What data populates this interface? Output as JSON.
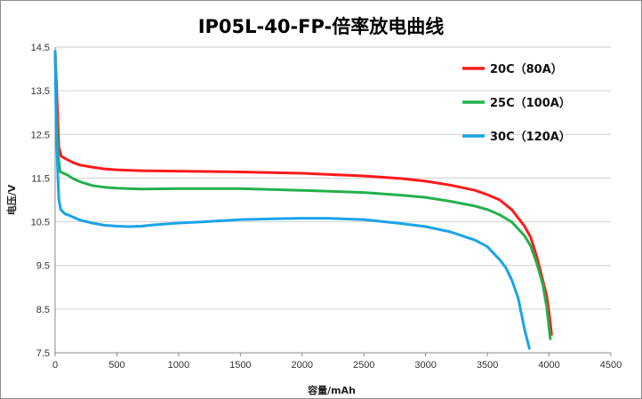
{
  "chart_data": {
    "type": "line",
    "title": "IP05L-40-FP-倍率放电曲线",
    "xlabel": "容量/mAh",
    "ylabel": "电压/V",
    "xlim": [
      0,
      4500
    ],
    "ylim": [
      7.5,
      14.5
    ],
    "xticks": [
      0,
      500,
      1000,
      1500,
      2000,
      2500,
      3000,
      3500,
      4000,
      4500
    ],
    "yticks": [
      7.5,
      8.5,
      9.5,
      10.5,
      11.5,
      12.5,
      13.5,
      14.5
    ],
    "grid": {
      "horizontal": true,
      "vertical": false
    },
    "legend_position": "top-right",
    "series": [
      {
        "name": "20C（80A）",
        "color": "#ff1a1a",
        "points": [
          [
            0,
            14.4
          ],
          [
            15,
            13.3
          ],
          [
            30,
            12.2
          ],
          [
            50,
            12.0
          ],
          [
            100,
            11.92
          ],
          [
            150,
            11.85
          ],
          [
            200,
            11.8
          ],
          [
            300,
            11.75
          ],
          [
            400,
            11.71
          ],
          [
            500,
            11.69
          ],
          [
            700,
            11.67
          ],
          [
            1000,
            11.66
          ],
          [
            1500,
            11.64
          ],
          [
            2000,
            11.61
          ],
          [
            2500,
            11.55
          ],
          [
            2800,
            11.49
          ],
          [
            3000,
            11.43
          ],
          [
            3200,
            11.34
          ],
          [
            3400,
            11.22
          ],
          [
            3500,
            11.12
          ],
          [
            3600,
            11.0
          ],
          [
            3700,
            10.77
          ],
          [
            3800,
            10.4
          ],
          [
            3850,
            10.15
          ],
          [
            3900,
            9.7
          ],
          [
            3950,
            9.15
          ],
          [
            3980,
            8.8
          ],
          [
            4000,
            8.4
          ],
          [
            4020,
            7.92
          ]
        ]
      },
      {
        "name": "25C（100A）",
        "color": "#22b14c",
        "points": [
          [
            0,
            14.4
          ],
          [
            10,
            13.0
          ],
          [
            25,
            12.0
          ],
          [
            40,
            11.65
          ],
          [
            60,
            11.62
          ],
          [
            100,
            11.57
          ],
          [
            150,
            11.48
          ],
          [
            200,
            11.42
          ],
          [
            300,
            11.33
          ],
          [
            400,
            11.29
          ],
          [
            500,
            11.27
          ],
          [
            700,
            11.25
          ],
          [
            1000,
            11.26
          ],
          [
            1500,
            11.26
          ],
          [
            2000,
            11.22
          ],
          [
            2500,
            11.17
          ],
          [
            2800,
            11.11
          ],
          [
            3000,
            11.06
          ],
          [
            3200,
            10.97
          ],
          [
            3400,
            10.86
          ],
          [
            3500,
            10.78
          ],
          [
            3600,
            10.66
          ],
          [
            3700,
            10.49
          ],
          [
            3800,
            10.18
          ],
          [
            3850,
            9.95
          ],
          [
            3900,
            9.55
          ],
          [
            3950,
            9.05
          ],
          [
            3980,
            8.55
          ],
          [
            4010,
            7.82
          ]
        ]
      },
      {
        "name": "30C（120A）",
        "color": "#1aa3e8",
        "points": [
          [
            0,
            14.4
          ],
          [
            8,
            12.8
          ],
          [
            20,
            11.7
          ],
          [
            30,
            11.0
          ],
          [
            45,
            10.78
          ],
          [
            80,
            10.68
          ],
          [
            120,
            10.64
          ],
          [
            200,
            10.54
          ],
          [
            300,
            10.47
          ],
          [
            400,
            10.42
          ],
          [
            500,
            10.4
          ],
          [
            600,
            10.39
          ],
          [
            700,
            10.4
          ],
          [
            800,
            10.43
          ],
          [
            1000,
            10.47
          ],
          [
            1200,
            10.5
          ],
          [
            1500,
            10.55
          ],
          [
            1800,
            10.57
          ],
          [
            2000,
            10.58
          ],
          [
            2200,
            10.58
          ],
          [
            2500,
            10.55
          ],
          [
            2800,
            10.46
          ],
          [
            3000,
            10.39
          ],
          [
            3200,
            10.27
          ],
          [
            3400,
            10.08
          ],
          [
            3500,
            9.93
          ],
          [
            3600,
            9.63
          ],
          [
            3650,
            9.45
          ],
          [
            3700,
            9.15
          ],
          [
            3750,
            8.75
          ],
          [
            3800,
            8.05
          ],
          [
            3840,
            7.6
          ]
        ]
      }
    ]
  }
}
